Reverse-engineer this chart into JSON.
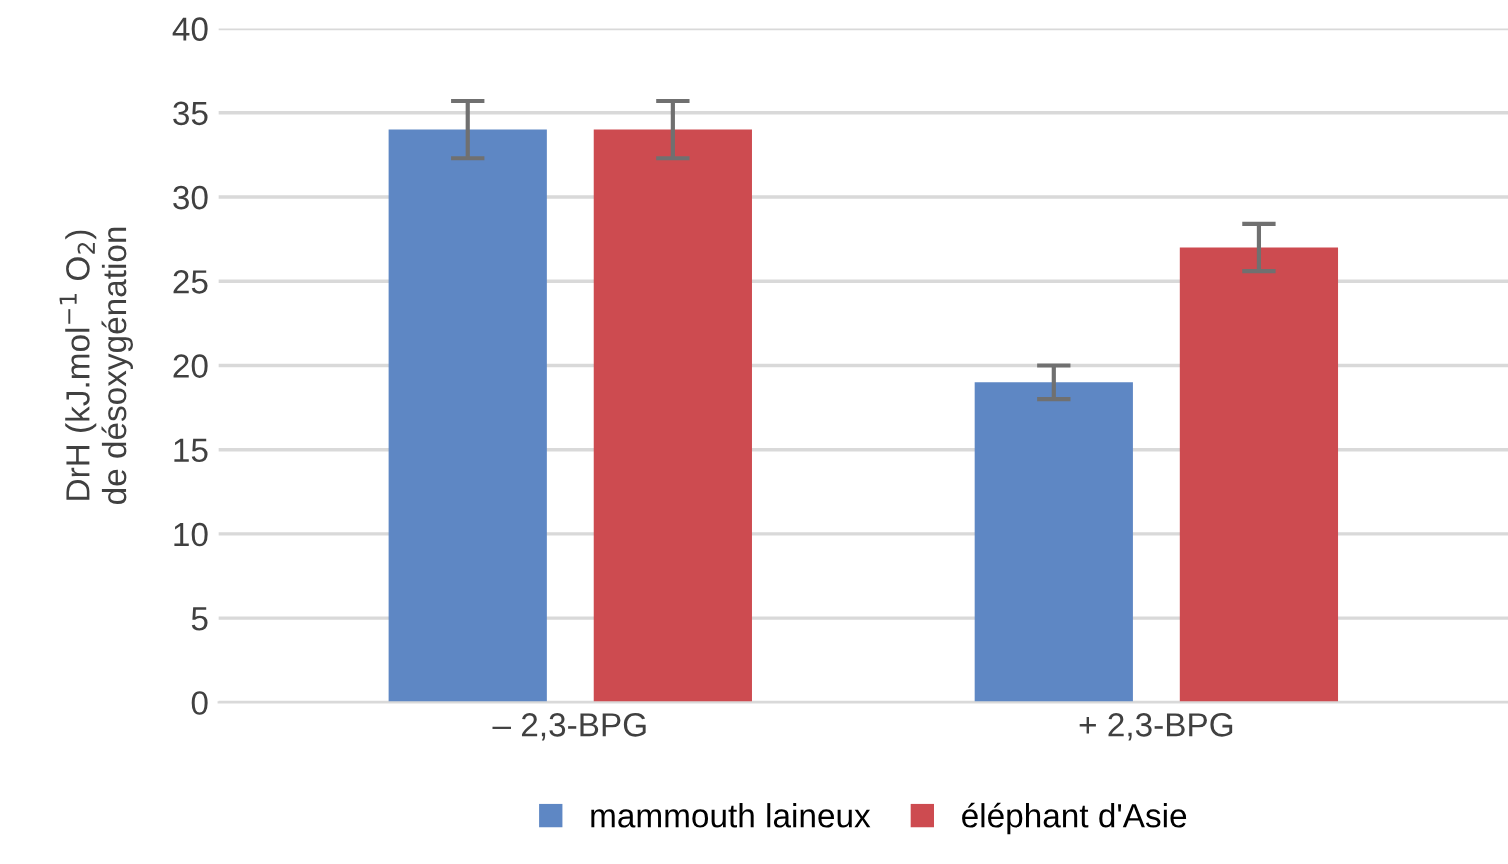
{
  "chart_data": {
    "type": "bar",
    "ylabel": "DrH (kJ.mol$^{−1}$ O$_{2}$)\nde désoxygénation",
    "categories": [
      "– 2,3-BPG",
      "+ 2,3-BPG"
    ],
    "series": [
      {
        "name": "mammouth laineux",
        "color": "#5e87c4",
        "values": [
          34,
          19
        ],
        "errors": [
          1.7,
          1.0
        ]
      },
      {
        "name": "éléphant d'Asie",
        "color": "#cd4b50",
        "values": [
          34,
          27
        ],
        "errors": [
          1.7,
          1.4
        ]
      }
    ],
    "ylim": [
      0,
      40
    ],
    "yticks": [
      0,
      5,
      10,
      15,
      20,
      25,
      30,
      35,
      40
    ],
    "grid": "y",
    "legend": "bottom"
  }
}
